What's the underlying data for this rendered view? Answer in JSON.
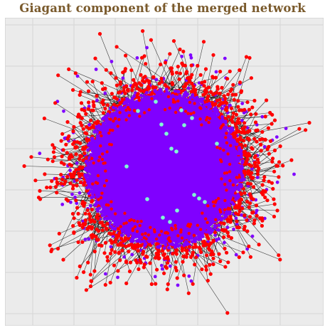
{
  "title": "Giagant component of the merged network",
  "colors": {
    "title": "#7a5a2c",
    "background": "#ebebeb",
    "grid": "#d6d6d6",
    "frame": "#c9c9c9",
    "edge": "#000000",
    "node_core": "#8000ff",
    "node_periphery": "#ff0000",
    "node_hub": "#80ffd4"
  },
  "chart_data": {
    "type": "network",
    "layout": "spring layout, dense circular core",
    "axes_ticks_shown": false,
    "grid": true,
    "legend": "none",
    "node_categories": [
      {
        "color": "#8000ff",
        "role": "core"
      },
      {
        "color": "#ff0000",
        "role": "periphery"
      },
      {
        "color": "#80ffd4",
        "role": "hub"
      }
    ],
    "approx_node_count": 6000,
    "hub_node_count": 18
  }
}
